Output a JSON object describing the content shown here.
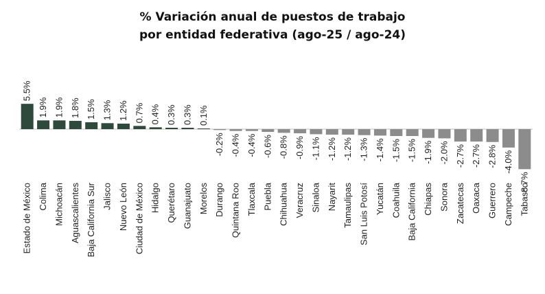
{
  "title_line1": "% Variación anual de puestos de trabajo",
  "title_line2": "por entidad federativa (ago-25 / ago-24)",
  "colors": {
    "positive": "#2d4a3c",
    "negative": "#8c8c8c",
    "inside_label": "#ffffff"
  },
  "chart_data": {
    "type": "bar",
    "title": "% Variación anual de puestos de trabajo por entidad federativa (ago-25 / ago-24)",
    "xlabel": "",
    "ylabel": "",
    "grid": false,
    "legend": "none",
    "ylim": [
      -8.7,
      5.5
    ],
    "categories": [
      "Estado de México",
      "Colima",
      "Michoacán",
      "Aguascalientes",
      "Baja California Sur",
      "Jalisco",
      "Nuevo León",
      "Ciudad de México",
      "Hidalgo",
      "Querétaro",
      "Guanajuato",
      "Morelos",
      "Durango",
      "Quintana Roo",
      "Tlaxcala",
      "Puebla",
      "Chihuahua",
      "Veracruz",
      "Sinaloa",
      "Nayarit",
      "Tamaulipas",
      "San Luis Potosí",
      "Yucatán",
      "Coahuila",
      "Baja California",
      "Chiapas",
      "Sonora",
      "Zacatecas",
      "Oaxaca",
      "Guerrero",
      "Campeche",
      "Tabasco"
    ],
    "values": [
      5.5,
      1.9,
      1.9,
      1.8,
      1.5,
      1.3,
      1.2,
      0.7,
      0.4,
      0.3,
      0.3,
      0.1,
      -0.2,
      -0.4,
      -0.4,
      -0.6,
      -0.8,
      -0.9,
      -1.1,
      -1.2,
      -1.2,
      -1.3,
      -1.4,
      -1.5,
      -1.5,
      -1.9,
      -2.0,
      -2.7,
      -2.7,
      -2.8,
      -4.0,
      -8.7
    ],
    "labels": [
      "5.5%",
      "1.9%",
      "1.9%",
      "1.8%",
      "1.5%",
      "1.3%",
      "1.2%",
      "0.7%",
      "0.4%",
      "0.3%",
      "0.3%",
      "0.1%",
      "-0.2%",
      "-0.4%",
      "-0.4%",
      "-0.6%",
      "-0.8%",
      "-0.9%",
      "-1.1%",
      "-1.2%",
      "-1.2%",
      "-1.3%",
      "-1.4%",
      "-1.5%",
      "-1.5%",
      "-1.9%",
      "-2.0%",
      "-2.7%",
      "-2.7%",
      "-2.8%",
      "-4.0%",
      "-8.7%"
    ]
  }
}
